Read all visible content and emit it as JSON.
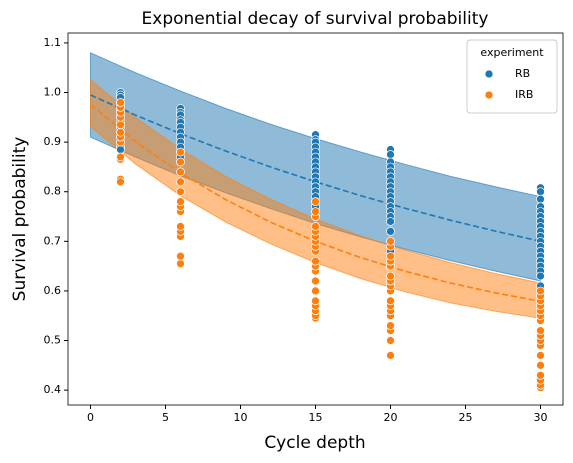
{
  "chart_data": {
    "type": "scatter",
    "title": "Exponential decay of survival probability",
    "xlabel": "Cycle depth",
    "ylabel": "Survival probability",
    "xlim": [
      -1.5,
      31.5
    ],
    "ylim": [
      0.37,
      1.12
    ],
    "xticks": [
      0,
      5,
      10,
      15,
      20,
      25,
      30
    ],
    "yticks": [
      0.4,
      0.5,
      0.6,
      0.7,
      0.8,
      0.9,
      {
        "value": 1,
        "label": "1.0"
      },
      1.1
    ],
    "legend_title": "experiment",
    "legend": "upper right",
    "series": [
      {
        "name": "RB",
        "color": "#1f77b4",
        "x": [
          2,
          2,
          2,
          2,
          2,
          2,
          2,
          2,
          2,
          2,
          2,
          2,
          2,
          2,
          6,
          6,
          6,
          6,
          6,
          6,
          6,
          6,
          6,
          6,
          6,
          6,
          6,
          15,
          15,
          15,
          15,
          15,
          15,
          15,
          15,
          15,
          15,
          15,
          15,
          15,
          15,
          15,
          15,
          15,
          15,
          15,
          15,
          20,
          20,
          20,
          20,
          20,
          20,
          20,
          20,
          20,
          20,
          20,
          20,
          20,
          20,
          20,
          20,
          20,
          20,
          30,
          30,
          30,
          30,
          30,
          30,
          30,
          30,
          30,
          30,
          30,
          30,
          30,
          30,
          30,
          30,
          30,
          30,
          30,
          30,
          30
        ],
        "values": [
          1.0,
          0.995,
          0.99,
          0.98,
          0.975,
          0.965,
          0.955,
          0.95,
          0.94,
          0.93,
          0.92,
          0.91,
          0.89,
          0.885,
          0.968,
          0.96,
          0.955,
          0.945,
          0.94,
          0.93,
          0.92,
          0.91,
          0.9,
          0.89,
          0.88,
          0.87,
          0.86,
          0.915,
          0.905,
          0.9,
          0.89,
          0.88,
          0.87,
          0.86,
          0.85,
          0.84,
          0.83,
          0.82,
          0.81,
          0.8,
          0.79,
          0.78,
          0.77,
          0.76,
          0.75,
          0.73,
          0.72,
          0.885,
          0.875,
          0.86,
          0.85,
          0.84,
          0.83,
          0.82,
          0.81,
          0.8,
          0.79,
          0.78,
          0.77,
          0.76,
          0.75,
          0.74,
          0.72,
          0.7,
          0.68,
          0.808,
          0.8,
          0.785,
          0.77,
          0.76,
          0.75,
          0.74,
          0.73,
          0.72,
          0.71,
          0.7,
          0.69,
          0.68,
          0.67,
          0.66,
          0.65,
          0.64,
          0.63,
          0.61,
          0.59,
          0.57
        ]
      },
      {
        "name": "IRB",
        "color": "#ff7f0e",
        "x": [
          2,
          2,
          2,
          2,
          2,
          2,
          2,
          2,
          2,
          2,
          2,
          2,
          6,
          6,
          6,
          6,
          6,
          6,
          6,
          6,
          6,
          6,
          6,
          6,
          6,
          15,
          15,
          15,
          15,
          15,
          15,
          15,
          15,
          15,
          15,
          15,
          15,
          15,
          15,
          15,
          15,
          15,
          15,
          15,
          20,
          20,
          20,
          20,
          20,
          20,
          20,
          20,
          20,
          20,
          20,
          20,
          20,
          20,
          20,
          20,
          20,
          30,
          30,
          30,
          30,
          30,
          30,
          30,
          30,
          30,
          30,
          30,
          30,
          30,
          30,
          30,
          30,
          30
        ],
        "values": [
          0.825,
          0.82,
          0.865,
          0.87,
          0.9,
          0.91,
          0.92,
          0.935,
          0.95,
          0.96,
          0.97,
          0.98,
          0.655,
          0.67,
          0.71,
          0.72,
          0.73,
          0.76,
          0.77,
          0.78,
          0.8,
          0.82,
          0.84,
          0.86,
          0.88,
          0.545,
          0.55,
          0.56,
          0.57,
          0.58,
          0.6,
          0.62,
          0.64,
          0.65,
          0.66,
          0.68,
          0.69,
          0.7,
          0.71,
          0.72,
          0.73,
          0.75,
          0.76,
          0.78,
          0.47,
          0.5,
          0.52,
          0.53,
          0.55,
          0.56,
          0.57,
          0.58,
          0.6,
          0.61,
          0.62,
          0.63,
          0.65,
          0.66,
          0.67,
          0.69,
          0.7,
          0.405,
          0.41,
          0.42,
          0.43,
          0.45,
          0.47,
          0.49,
          0.5,
          0.51,
          0.52,
          0.54,
          0.55,
          0.56,
          0.57,
          0.58,
          0.59,
          0.6
        ]
      }
    ],
    "fits": [
      {
        "color": "#1f77b4",
        "x": [
          0,
          3,
          6,
          9,
          12,
          15,
          18,
          21,
          24,
          27,
          30
        ],
        "values": [
          0.995,
          0.9545,
          0.917,
          0.8822,
          0.8499,
          0.82,
          0.7922,
          0.7665,
          0.7426,
          0.7205,
          0.7
        ],
        "upper": [
          1.08,
          1.04,
          1.003,
          0.968,
          0.936,
          0.907,
          0.88,
          0.855,
          0.831,
          0.81,
          0.79
        ],
        "lower": [
          0.91,
          0.87,
          0.832,
          0.798,
          0.766,
          0.736,
          0.709,
          0.684,
          0.661,
          0.64,
          0.62
        ]
      },
      {
        "color": "#ff7f0e",
        "x": [
          0,
          3,
          6,
          9,
          12,
          15,
          18,
          21,
          24,
          27,
          30
        ],
        "values": [
          0.976,
          0.9013,
          0.838,
          0.7842,
          0.7387,
          0.7,
          0.6673,
          0.6395,
          0.6159,
          0.596,
          0.579
        ],
        "upper": [
          1.026,
          0.95,
          0.886,
          0.831,
          0.785,
          0.745,
          0.711,
          0.682,
          0.657,
          0.635,
          0.616
        ],
        "lower": [
          0.931,
          0.856,
          0.792,
          0.739,
          0.695,
          0.657,
          0.625,
          0.598,
          0.576,
          0.559,
          0.545
        ]
      }
    ]
  }
}
